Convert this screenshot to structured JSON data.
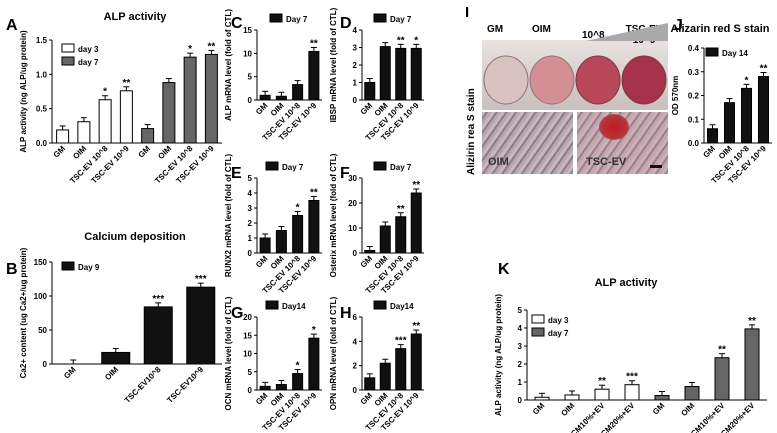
{
  "chart_data": [
    {
      "panel": "A",
      "type": "bar",
      "title": "ALP activity",
      "ylabel": "ALP activity (ng ALP/ug protein)",
      "ylim": [
        0,
        1.5
      ],
      "yticks": [
        "0.0",
        "0.5",
        "1.0",
        "1.5"
      ],
      "series": [
        {
          "name": "day 3",
          "color": "#ffffff",
          "values": [
            0.19,
            0.31,
            0.63,
            0.76
          ],
          "sig": [
            "",
            "",
            "*",
            "**"
          ]
        },
        {
          "name": "day 7",
          "color": "#666666",
          "values": [
            0.21,
            0.88,
            1.25,
            1.29
          ],
          "sig": [
            "",
            "",
            "*",
            "**"
          ]
        }
      ],
      "categories": [
        "GM",
        "OIM",
        "TSC-EV 10^8",
        "TSC-EV 10^9"
      ],
      "legend": "top-left"
    },
    {
      "panel": "B",
      "type": "bar",
      "title": "Calcium deposition",
      "ylabel": "Ca2+ content (ug Ca2+/ug protein)",
      "ylim": [
        0,
        150
      ],
      "yticks": [
        "0",
        "50",
        "100",
        "150"
      ],
      "series": [
        {
          "name": "Day 9",
          "color": "#111111",
          "values": [
            0,
            17,
            84,
            113
          ],
          "sig": [
            "",
            "",
            "***",
            "***"
          ]
        }
      ],
      "categories": [
        "GM",
        "OIM",
        "TSC-EV10^8",
        "TSC-EV10^9"
      ]
    },
    {
      "panel": "C",
      "type": "bar",
      "ylabel": "ALP mRNA level (fold of CTL)",
      "ylim": [
        0,
        15
      ],
      "yticks": [
        "0",
        "5",
        "10",
        "15"
      ],
      "series": [
        {
          "name": "Day 7",
          "color": "#111111",
          "values": [
            1.0,
            0.8,
            3.3,
            10.4
          ],
          "sig": [
            "",
            "",
            "",
            "**"
          ]
        }
      ],
      "categories": [
        "GM",
        "OIM",
        "TSC-EV 10^8",
        "TSC-EV 10^9"
      ]
    },
    {
      "panel": "D",
      "type": "bar",
      "ylabel": "IBSP mRNA level (fold of CTL)",
      "ylim": [
        0,
        4
      ],
      "yticks": [
        "0",
        "1",
        "2",
        "3",
        "4"
      ],
      "series": [
        {
          "name": "Day 7",
          "color": "#111111",
          "values": [
            1.0,
            3.05,
            2.95,
            2.95
          ],
          "sig": [
            "",
            "",
            "**",
            "*"
          ]
        }
      ],
      "categories": [
        "GM",
        "OIM",
        "TSC-EV 10^8",
        "TSC-EV 10^9"
      ]
    },
    {
      "panel": "E",
      "type": "bar",
      "ylabel": "RUNX2 mRNA level (fold of CTL)",
      "ylim": [
        0,
        5
      ],
      "yticks": [
        "0",
        "1",
        "2",
        "3",
        "4",
        "5"
      ],
      "series": [
        {
          "name": "Day 7",
          "color": "#111111",
          "values": [
            1.0,
            1.5,
            2.5,
            3.5
          ],
          "sig": [
            "",
            "",
            "*",
            "**"
          ]
        }
      ],
      "categories": [
        "GM",
        "OIM",
        "TSC-EV 10^8",
        "TSC-EV 10^9"
      ]
    },
    {
      "panel": "F",
      "type": "bar",
      "ylabel": "Osterix mRNA level (fold of CTL)",
      "ylim": [
        0,
        30
      ],
      "yticks": [
        "0",
        "10",
        "20",
        "30"
      ],
      "series": [
        {
          "name": "Day 7",
          "color": "#111111",
          "values": [
            1.0,
            10.8,
            14.5,
            24
          ],
          "sig": [
            "",
            "",
            "**",
            "**"
          ]
        }
      ],
      "categories": [
        "GM",
        "OIM",
        "TSC-EV 10^8",
        "TSC-EV 10^9"
      ]
    },
    {
      "panel": "G",
      "type": "bar",
      "ylabel": "OCN mRNA level (fold of CTL)",
      "ylim": [
        0,
        20
      ],
      "yticks": [
        "0",
        "5",
        "10",
        "15",
        "20"
      ],
      "series": [
        {
          "name": "Day14",
          "color": "#111111",
          "values": [
            1.0,
            1.5,
            4.5,
            14.2
          ],
          "sig": [
            "",
            "",
            "*",
            "*"
          ]
        }
      ],
      "categories": [
        "GM",
        "OIM",
        "TSC-EV 10^8",
        "TSC-EV 10^9"
      ]
    },
    {
      "panel": "H",
      "type": "bar",
      "ylabel": "OPN mRNA level (fold of CTL)",
      "ylim": [
        0,
        6
      ],
      "yticks": [
        "0",
        "2",
        "4",
        "6"
      ],
      "series": [
        {
          "name": "Day14",
          "color": "#111111",
          "values": [
            1.0,
            2.2,
            3.4,
            4.6
          ],
          "sig": [
            "",
            "",
            "***",
            "**"
          ]
        }
      ],
      "categories": [
        "GM",
        "OIM",
        "TSC-EV 10^8",
        "TSC-EV 10^9"
      ]
    },
    {
      "panel": "J",
      "type": "bar",
      "title": "Alizarin red S stain",
      "ylabel": "OD 570nm",
      "ylim": [
        0,
        0.4
      ],
      "yticks": [
        "0.0",
        "0.1",
        "0.2",
        "0.3",
        "0.4"
      ],
      "series": [
        {
          "name": "Day 14",
          "color": "#111111",
          "values": [
            0.06,
            0.17,
            0.23,
            0.28
          ],
          "sig": [
            "",
            "",
            "*",
            "**"
          ]
        }
      ],
      "categories": [
        "GM",
        "OIM",
        "TSC-EV 10^8",
        "TSC-EV 10^9"
      ]
    },
    {
      "panel": "K",
      "type": "bar",
      "title": "ALP activity",
      "ylabel": "ALP activity (ng ALP/ug protein)",
      "ylim": [
        0,
        5
      ],
      "yticks": [
        "0",
        "1",
        "2",
        "3",
        "4",
        "5"
      ],
      "series": [
        {
          "name": "day 3",
          "color": "#ffffff",
          "values": [
            0.15,
            0.28,
            0.6,
            0.85
          ],
          "sig": [
            "",
            "",
            "**",
            "***"
          ]
        },
        {
          "name": "day 7",
          "color": "#666666",
          "values": [
            0.25,
            0.75,
            2.35,
            3.95
          ],
          "sig": [
            "",
            "",
            "**",
            "**"
          ]
        }
      ],
      "categories": [
        "GM",
        "OIM",
        "TSC-CM10%+EV",
        "TSC-CM20%+EV"
      ],
      "legend": "top-left"
    }
  ],
  "photo_panel": {
    "label": "I",
    "side_label": "Alizirin rea S stain",
    "well_labels": [
      "GM",
      "OIM",
      "10^8",
      "TSC-EV 10^9"
    ],
    "micro_labels": [
      "OIM",
      "TSC-EV"
    ]
  }
}
